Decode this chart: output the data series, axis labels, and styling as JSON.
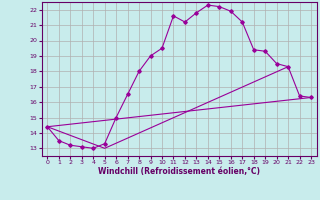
{
  "xlabel": "Windchill (Refroidissement éolien,°C)",
  "ylabel": "",
  "xlim": [
    -0.5,
    23.5
  ],
  "ylim": [
    12.5,
    22.5
  ],
  "xticks": [
    0,
    1,
    2,
    3,
    4,
    5,
    6,
    7,
    8,
    9,
    10,
    11,
    12,
    13,
    14,
    15,
    16,
    17,
    18,
    19,
    20,
    21,
    22,
    23
  ],
  "yticks": [
    13,
    14,
    15,
    16,
    17,
    18,
    19,
    20,
    21,
    22
  ],
  "bg_color": "#c8ecec",
  "line_color": "#990099",
  "grid_color": "#b0b0b0",
  "line1_x": [
    0,
    1,
    2,
    3,
    4,
    5,
    6,
    7,
    8,
    9,
    10,
    11,
    12,
    13,
    14,
    15,
    16,
    17,
    18,
    19,
    20,
    21,
    22,
    23
  ],
  "line1_y": [
    14.4,
    13.5,
    13.2,
    13.1,
    13.0,
    13.3,
    15.0,
    16.5,
    18.0,
    19.0,
    19.5,
    21.6,
    21.2,
    21.8,
    22.3,
    22.2,
    21.9,
    21.2,
    19.4,
    19.3,
    18.5,
    18.3,
    16.4,
    16.3
  ],
  "line2_x": [
    0,
    23
  ],
  "line2_y": [
    14.4,
    16.3
  ],
  "line3_x": [
    0,
    5,
    21
  ],
  "line3_y": [
    14.4,
    13.0,
    18.3
  ]
}
